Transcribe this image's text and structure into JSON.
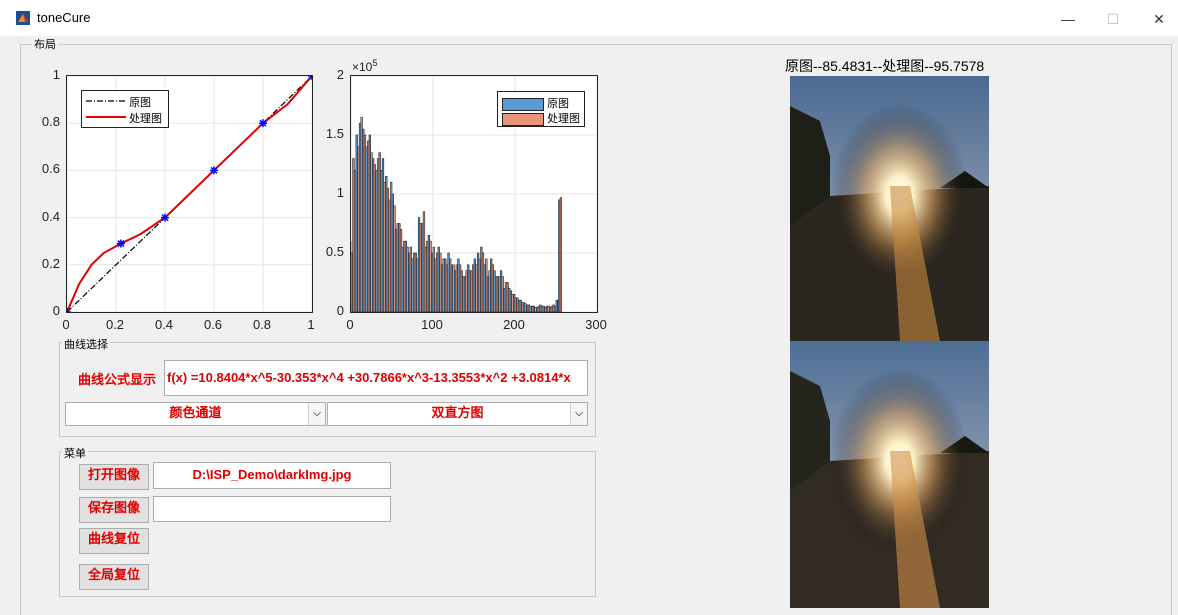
{
  "window": {
    "title": "toneCure",
    "minimize": "—",
    "maximize": "☐",
    "close": "✕"
  },
  "layout_panel": {
    "label": "布局"
  },
  "curve_plot": {
    "x_ticks": [
      "0",
      "0.2",
      "0.4",
      "0.6",
      "0.8",
      "1"
    ],
    "y_ticks": [
      "0",
      "0.2",
      "0.4",
      "0.6",
      "0.8",
      "1"
    ],
    "legend": [
      "原图",
      "处理图"
    ],
    "colors": {
      "original": "#000000",
      "processed": "#e00000",
      "points": "#0000ff"
    }
  },
  "histogram_plot": {
    "x_ticks": [
      "0",
      "100",
      "200",
      "300"
    ],
    "y_ticks": [
      "0",
      "0.5",
      "1",
      "1.5",
      "2"
    ],
    "exponent_base": "×10",
    "exponent_power": "5",
    "legend": [
      "原图",
      "处理图"
    ],
    "colors": {
      "original": "#5b9bd5",
      "processed": "#e9957a"
    }
  },
  "image_panel": {
    "title": "原图--85.4831--处理图--95.7578"
  },
  "curve_select": {
    "label": "曲线选择",
    "formula_label": "曲线公式显示",
    "formula": "f(x)  =10.8404*x^5-30.353*x^4 +30.7866*x^3-13.3553*x^2 +3.0814*x",
    "color_channel": "颜色通道",
    "histogram_mode": "双直方图"
  },
  "menu": {
    "label": "菜单",
    "open_image": "打开图像",
    "open_path": "D:\\ISP_Demo\\darkImg.jpg",
    "save_image": "保存图像",
    "save_path": "",
    "reset_curve": "曲线复位",
    "reset_all": "全局复位"
  },
  "chart_data": [
    {
      "type": "line",
      "x": [
        0,
        0.05,
        0.1,
        0.15,
        0.22,
        0.3,
        0.4,
        0.5,
        0.6,
        0.7,
        0.8,
        0.9,
        1
      ],
      "series": [
        {
          "name": "原图",
          "values": [
            0,
            0.05,
            0.1,
            0.15,
            0.22,
            0.3,
            0.4,
            0.5,
            0.6,
            0.7,
            0.8,
            0.9,
            1
          ]
        },
        {
          "name": "处理图",
          "values": [
            0,
            0.12,
            0.2,
            0.25,
            0.29,
            0.33,
            0.4,
            0.5,
            0.6,
            0.7,
            0.8,
            0.88,
            1
          ]
        }
      ],
      "control_points": [
        [
          0,
          0
        ],
        [
          0.22,
          0.29
        ],
        [
          0.4,
          0.4
        ],
        [
          0.6,
          0.6
        ],
        [
          0.8,
          0.8
        ],
        [
          1,
          1
        ]
      ],
      "xlim": [
        0,
        1
      ],
      "ylim": [
        0,
        1
      ],
      "grid": true,
      "legend_position": "top-left"
    },
    {
      "type": "bar",
      "x": [
        0,
        4,
        8,
        12,
        16,
        20,
        24,
        28,
        32,
        36,
        40,
        44,
        48,
        52,
        56,
        60,
        64,
        68,
        72,
        76,
        80,
        84,
        88,
        92,
        96,
        100,
        104,
        108,
        112,
        116,
        120,
        124,
        128,
        132,
        136,
        140,
        144,
        148,
        152,
        156,
        160,
        164,
        168,
        172,
        176,
        180,
        184,
        188,
        192,
        196,
        200,
        204,
        208,
        212,
        216,
        220,
        224,
        228,
        232,
        236,
        240,
        244,
        248,
        252,
        255
      ],
      "series": [
        {
          "name": "原图",
          "values": [
            0.6,
            1.3,
            1.5,
            1.6,
            1.55,
            1.4,
            1.5,
            1.3,
            1.2,
            1.35,
            1.3,
            1.15,
            0.95,
            1.0,
            0.7,
            0.75,
            0.55,
            0.6,
            0.5,
            0.45,
            0.5,
            0.8,
            0.75,
            0.55,
            0.65,
            0.5,
            0.45,
            0.55,
            0.4,
            0.45,
            0.5,
            0.4,
            0.35,
            0.45,
            0.35,
            0.3,
            0.4,
            0.35,
            0.45,
            0.5,
            0.55,
            0.4,
            0.3,
            0.45,
            0.35,
            0.3,
            0.35,
            0.2,
            0.25,
            0.18,
            0.15,
            0.12,
            0.1,
            0.08,
            0.06,
            0.05,
            0.05,
            0.04,
            0.06,
            0.05,
            0.05,
            0.04,
            0.06,
            0.1,
            0.95
          ]
        },
        {
          "name": "处理图",
          "values": [
            0.5,
            1.2,
            1.4,
            1.65,
            1.5,
            1.45,
            1.35,
            1.25,
            1.3,
            1.2,
            1.1,
            1.05,
            1.1,
            0.9,
            0.75,
            0.7,
            0.6,
            0.55,
            0.55,
            0.5,
            0.45,
            0.75,
            0.85,
            0.6,
            0.6,
            0.55,
            0.5,
            0.5,
            0.45,
            0.4,
            0.45,
            0.4,
            0.4,
            0.4,
            0.3,
            0.35,
            0.35,
            0.4,
            0.4,
            0.45,
            0.5,
            0.45,
            0.35,
            0.4,
            0.3,
            0.3,
            0.3,
            0.25,
            0.2,
            0.15,
            0.12,
            0.1,
            0.08,
            0.07,
            0.06,
            0.05,
            0.04,
            0.05,
            0.05,
            0.04,
            0.05,
            0.05,
            0.05,
            0.1,
            0.97
          ]
        }
      ],
      "y_unit": "×10^5",
      "xlim": [
        0,
        300
      ],
      "ylim": [
        0,
        2
      ],
      "grid": true,
      "legend_position": "top-right"
    }
  ]
}
